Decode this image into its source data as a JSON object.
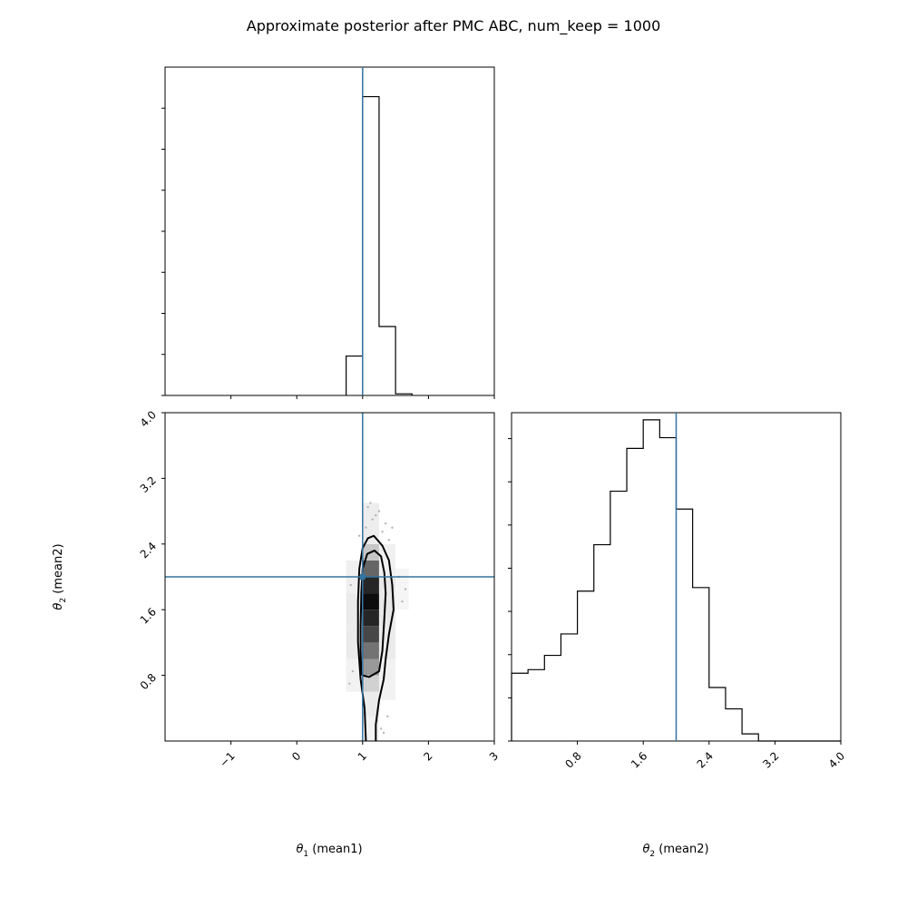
{
  "figure": {
    "title": "Approximate posterior after PMC ABC, num_keep = 1000",
    "truth_color": "#3274a1",
    "hist_color": "#000000"
  },
  "chart_data": [
    {
      "type": "bar",
      "id": "hist-theta1",
      "xlim": [
        -2,
        3
      ],
      "x_ticks": [
        -1,
        0,
        1,
        2,
        3
      ],
      "truth": 1.0,
      "bin_edges": [
        0.75,
        1.0,
        1.25,
        1.5,
        1.75
      ],
      "counts": [
        0.12,
        0.91,
        0.21,
        0.005
      ],
      "ylim": [
        0,
        1
      ],
      "n_y_ticks": 8
    },
    {
      "type": "bar",
      "id": "hist-theta2",
      "xlim": [
        0,
        4
      ],
      "x_ticks": [
        "0.8",
        "1.6",
        "2.4",
        "3.2",
        "4.0"
      ],
      "x_tick_values": [
        0.8,
        1.6,
        2.4,
        3.2,
        4.0
      ],
      "xlabel_main": "θ",
      "xlabel_sub": "2",
      "xlabel_rest": " (mean2)",
      "truth": 2.0,
      "bin_edges": [
        0,
        0.2,
        0.4,
        0.6,
        0.8,
        1.0,
        1.2,
        1.4,
        1.6,
        1.8,
        2.0,
        2.2,
        2.4,
        2.6,
        2.8,
        3.0,
        3.2,
        3.4,
        3.6,
        3.8,
        4.0
      ],
      "counts": [
        19,
        20,
        24,
        30,
        42,
        55,
        70,
        82,
        90,
        85,
        65,
        43,
        15,
        9,
        2,
        0,
        0,
        0,
        0,
        0
      ],
      "ylim": [
        0,
        92
      ],
      "n_y_ticks": 7
    },
    {
      "type": "heatmap",
      "id": "joint-theta1-theta2",
      "xlim": [
        -2,
        3
      ],
      "ylim": [
        0,
        4
      ],
      "x_ticks": [
        "−1",
        "0",
        "1",
        "2",
        "3"
      ],
      "x_tick_values": [
        -1,
        0,
        1,
        2,
        3
      ],
      "y_ticks": [
        "0.8",
        "1.6",
        "2.4",
        "3.2",
        "4.0"
      ],
      "y_tick_values": [
        0.8,
        1.6,
        2.4,
        3.2,
        4.0
      ],
      "xlabel_main": "θ",
      "xlabel_sub": "1",
      "xlabel_rest": " (mean1)",
      "ylabel_main": "θ",
      "ylabel_sub": "2",
      "ylabel_rest": " (mean2)",
      "truth": [
        1.0,
        2.0
      ],
      "cells": [
        {
          "x": [
            0.75,
            1.0
          ],
          "y": [
            0.6,
            1.0
          ],
          "shade": 0.05
        },
        {
          "x": [
            0.75,
            1.0
          ],
          "y": [
            1.0,
            1.4
          ],
          "shade": 0.08
        },
        {
          "x": [
            0.75,
            1.0
          ],
          "y": [
            1.4,
            1.8
          ],
          "shade": 0.08
        },
        {
          "x": [
            0.75,
            1.0
          ],
          "y": [
            1.8,
            2.2
          ],
          "shade": 0.06
        },
        {
          "x": [
            1.0,
            1.25
          ],
          "y": [
            0.0,
            0.3
          ],
          "shade": 0.05
        },
        {
          "x": [
            1.0,
            1.25
          ],
          "y": [
            0.3,
            0.6
          ],
          "shade": 0.08
        },
        {
          "x": [
            1.0,
            1.25
          ],
          "y": [
            0.6,
            0.8
          ],
          "shade": 0.18
        },
        {
          "x": [
            1.0,
            1.25
          ],
          "y": [
            0.8,
            1.0
          ],
          "shade": 0.4
        },
        {
          "x": [
            1.0,
            1.25
          ],
          "y": [
            1.0,
            1.2
          ],
          "shade": 0.55
        },
        {
          "x": [
            1.0,
            1.25
          ],
          "y": [
            1.2,
            1.4
          ],
          "shade": 0.72
        },
        {
          "x": [
            1.0,
            1.25
          ],
          "y": [
            1.4,
            1.6
          ],
          "shade": 0.85
        },
        {
          "x": [
            1.0,
            1.25
          ],
          "y": [
            1.6,
            1.8
          ],
          "shade": 0.95
        },
        {
          "x": [
            1.0,
            1.25
          ],
          "y": [
            1.8,
            2.0
          ],
          "shade": 0.85
        },
        {
          "x": [
            1.0,
            1.25
          ],
          "y": [
            2.0,
            2.2
          ],
          "shade": 0.6
        },
        {
          "x": [
            1.0,
            1.25
          ],
          "y": [
            2.2,
            2.4
          ],
          "shade": 0.22
        },
        {
          "x": [
            1.0,
            1.25
          ],
          "y": [
            2.4,
            2.9
          ],
          "shade": 0.07
        },
        {
          "x": [
            1.25,
            1.5
          ],
          "y": [
            0.5,
            1.0
          ],
          "shade": 0.05
        },
        {
          "x": [
            1.25,
            1.5
          ],
          "y": [
            1.0,
            1.5
          ],
          "shade": 0.08
        },
        {
          "x": [
            1.25,
            1.5
          ],
          "y": [
            1.5,
            2.0
          ],
          "shade": 0.09
        },
        {
          "x": [
            1.25,
            1.5
          ],
          "y": [
            2.0,
            2.4
          ],
          "shade": 0.06
        },
        {
          "x": [
            1.5,
            1.7
          ],
          "y": [
            1.6,
            2.1
          ],
          "shade": 0.04
        }
      ],
      "contours": [
        {
          "width": 2,
          "points": [
            [
              1.05,
              0.0
            ],
            [
              1.03,
              0.4
            ],
            [
              0.97,
              0.75
            ],
            [
              0.93,
              1.2
            ],
            [
              0.93,
              1.7
            ],
            [
              0.95,
              2.1
            ],
            [
              1.0,
              2.35
            ],
            [
              1.08,
              2.47
            ],
            [
              1.17,
              2.5
            ],
            [
              1.3,
              2.38
            ],
            [
              1.4,
              2.2
            ],
            [
              1.45,
              1.9
            ],
            [
              1.47,
              1.6
            ],
            [
              1.4,
              1.3
            ],
            [
              1.35,
              1.0
            ],
            [
              1.32,
              0.75
            ],
            [
              1.25,
              0.5
            ],
            [
              1.2,
              0.2
            ],
            [
              1.2,
              0.0
            ]
          ]
        },
        {
          "width": 2,
          "points": [
            [
              0.98,
              0.82
            ],
            [
              1.0,
              0.8
            ],
            [
              1.1,
              0.78
            ],
            [
              1.25,
              0.85
            ],
            [
              1.3,
              1.1
            ],
            [
              1.33,
              1.5
            ],
            [
              1.35,
              1.8
            ],
            [
              1.33,
              2.05
            ],
            [
              1.28,
              2.25
            ],
            [
              1.18,
              2.32
            ],
            [
              1.07,
              2.28
            ],
            [
              1.0,
              2.1
            ],
            [
              0.98,
              1.8
            ],
            [
              0.97,
              1.4
            ],
            [
              0.97,
              1.1
            ],
            [
              0.98,
              0.82
            ]
          ]
        }
      ],
      "points": [
        [
          1.12,
          2.9
        ],
        [
          1.2,
          2.75
        ],
        [
          1.05,
          2.6
        ],
        [
          1.3,
          2.55
        ],
        [
          1.15,
          2.7
        ],
        [
          1.25,
          2.8
        ],
        [
          0.95,
          2.5
        ],
        [
          1.35,
          2.65
        ],
        [
          1.08,
          2.85
        ],
        [
          1.4,
          2.45
        ],
        [
          1.6,
          1.7
        ],
        [
          1.55,
          2.0
        ],
        [
          0.8,
          0.7
        ],
        [
          0.82,
          1.9
        ],
        [
          1.28,
          0.15
        ],
        [
          1.32,
          0.1
        ],
        [
          1.22,
          0.25
        ],
        [
          1.38,
          0.3
        ],
        [
          0.85,
          0.85
        ],
        [
          1.65,
          1.85
        ],
        [
          1.45,
          2.6
        ]
      ]
    }
  ]
}
